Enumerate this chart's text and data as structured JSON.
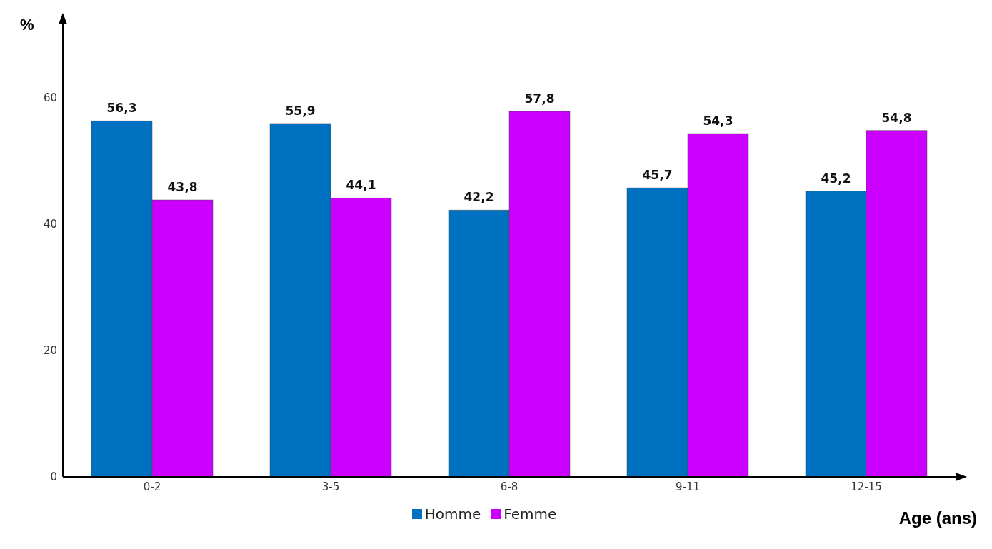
{
  "chart_data": {
    "type": "bar",
    "xlabel": "Age (ans)",
    "ylabel": "%",
    "categories": [
      "0-2",
      "3-5",
      "6-8",
      "9-11",
      "12-15"
    ],
    "series": [
      {
        "name": "Homme",
        "color": "#0070c0",
        "values": [
          56.3,
          55.9,
          42.2,
          45.7,
          45.2
        ],
        "value_labels": [
          "56,3",
          "55,9",
          "42,2",
          "45,7",
          "45,2"
        ]
      },
      {
        "name": "Femme",
        "color": "#cc00ff",
        "values": [
          43.8,
          44.1,
          57.8,
          54.3,
          54.8
        ],
        "value_labels": [
          "43,8",
          "44,1",
          "57,8",
          "54,3",
          "54,8"
        ]
      }
    ],
    "ylim": [
      0,
      70
    ],
    "yticks": [
      0,
      20,
      40,
      60
    ],
    "grid": false,
    "legend": "bottom"
  }
}
